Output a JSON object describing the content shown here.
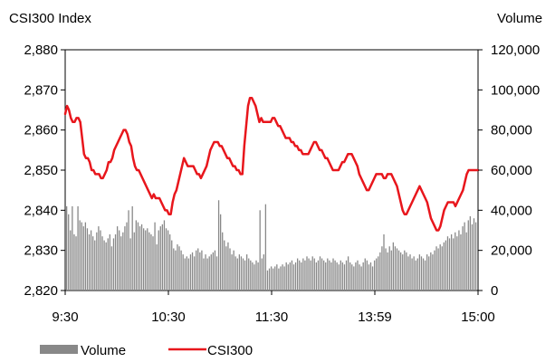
{
  "chart_data": {
    "type": "bar+line",
    "left_axis_label": "CSI300 Index",
    "right_axis_label": "Volume",
    "left_axis": {
      "ylim": [
        2820,
        2880
      ],
      "ticks": [
        2820,
        2830,
        2840,
        2850,
        2860,
        2870,
        2880
      ],
      "tick_labels": [
        "2,820",
        "2,830",
        "2,840",
        "2,850",
        "2,860",
        "2,870",
        "2,880"
      ]
    },
    "right_axis": {
      "ylim": [
        0,
        120000
      ],
      "ticks": [
        0,
        20000,
        40000,
        60000,
        80000,
        100000,
        120000
      ],
      "tick_labels": [
        "0",
        "20,000",
        "40,000",
        "60,000",
        "80,000",
        "100,000",
        "120,000"
      ]
    },
    "x_tick_labels": [
      "9:30",
      "10:30",
      "11:30",
      "13:59",
      "15:00"
    ],
    "grid": false,
    "legend_position": "bottom",
    "series": [
      {
        "name": "Volume",
        "type": "bar",
        "color": "#888888",
        "axis": "right",
        "values": [
          42000,
          38000,
          30000,
          42000,
          28000,
          27000,
          42000,
          35000,
          34000,
          32000,
          34000,
          31000,
          28000,
          30000,
          27000,
          25000,
          29000,
          32000,
          30000,
          27000,
          25000,
          24000,
          26000,
          28000,
          22000,
          26000,
          28000,
          32000,
          30000,
          27000,
          29000,
          32000,
          34000,
          40000,
          26000,
          42000,
          29000,
          35000,
          34000,
          32000,
          33000,
          31000,
          30000,
          31000,
          29000,
          28000,
          27000,
          34000,
          23000,
          30000,
          32000,
          33000,
          35000,
          31000,
          30000,
          28000,
          25000,
          21000,
          20000,
          23000,
          22000,
          20000,
          18000,
          16000,
          17000,
          16000,
          18000,
          19000,
          17000,
          20000,
          21000,
          19000,
          20000,
          16000,
          18000,
          16000,
          17000,
          18000,
          19000,
          20000,
          17000,
          45000,
          38000,
          29000,
          25000,
          22000,
          24000,
          21000,
          18000,
          20000,
          17000,
          16000,
          18000,
          17000,
          16000,
          15000,
          18000,
          16000,
          15000,
          14000,
          13000,
          15000,
          14000,
          40000,
          16000,
          18000,
          43000,
          10000,
          11000,
          12000,
          11000,
          12000,
          13000,
          11000,
          12000,
          13000,
          12000,
          14000,
          13000,
          14000,
          15000,
          13000,
          14000,
          16000,
          15000,
          14000,
          16000,
          15000,
          17000,
          16000,
          15000,
          17000,
          16000,
          14000,
          15000,
          17000,
          16000,
          15000,
          14000,
          16000,
          15000,
          14000,
          16000,
          15000,
          14000,
          13000,
          15000,
          14000,
          13000,
          15000,
          17000,
          14000,
          13000,
          12000,
          14000,
          15000,
          13000,
          12000,
          14000,
          16000,
          15000,
          13000,
          14000,
          12000,
          15000,
          16000,
          17000,
          19000,
          22000,
          28000,
          21000,
          19000,
          22000,
          20000,
          24000,
          22000,
          21000,
          20000,
          19000,
          18000,
          20000,
          19000,
          17000,
          18000,
          16000,
          17000,
          15000,
          16000,
          18000,
          17000,
          16000,
          15000,
          18000,
          17000,
          19000,
          18000,
          20000,
          22000,
          21000,
          23000,
          22000,
          24000,
          25000,
          27000,
          26000,
          28000,
          26000,
          29000,
          27000,
          30000,
          28000,
          32000,
          34000,
          29000,
          35000,
          37000,
          33000,
          36000,
          34000
        ]
      },
      {
        "name": "CSI300",
        "type": "line",
        "color": "#e8161c",
        "axis": "left",
        "values": [
          2864,
          2866,
          2865,
          2863,
          2862,
          2862,
          2863,
          2863,
          2862,
          2858,
          2854,
          2853,
          2853,
          2852,
          2850,
          2850,
          2849,
          2849,
          2849,
          2848,
          2848,
          2849,
          2850,
          2852,
          2852,
          2853,
          2855,
          2856,
          2857,
          2858,
          2859,
          2860,
          2860,
          2859,
          2857,
          2856,
          2853,
          2851,
          2850,
          2850,
          2849,
          2848,
          2847,
          2846,
          2845,
          2844,
          2843,
          2844,
          2843,
          2843,
          2843,
          2842,
          2841,
          2840,
          2840,
          2839,
          2839,
          2842,
          2844,
          2845,
          2847,
          2849,
          2851,
          2853,
          2852,
          2851,
          2851,
          2851,
          2851,
          2850,
          2849,
          2849,
          2848,
          2849,
          2850,
          2851,
          2853,
          2855,
          2856,
          2857,
          2857,
          2857,
          2856,
          2856,
          2855,
          2854,
          2853,
          2853,
          2852,
          2851,
          2851,
          2850,
          2850,
          2849,
          2849,
          2856,
          2861,
          2866,
          2868,
          2868,
          2867,
          2866,
          2864,
          2862,
          2863,
          2862,
          2862,
          2862,
          2862,
          2862,
          2863,
          2863,
          2862,
          2861,
          2861,
          2860,
          2859,
          2858,
          2858,
          2858,
          2857,
          2857,
          2856,
          2856,
          2855,
          2855,
          2854,
          2854,
          2854,
          2854,
          2855,
          2856,
          2857,
          2857,
          2856,
          2855,
          2855,
          2854,
          2853,
          2853,
          2852,
          2851,
          2850,
          2850,
          2850,
          2850,
          2851,
          2852,
          2852,
          2853,
          2854,
          2854,
          2854,
          2853,
          2852,
          2851,
          2849,
          2848,
          2847,
          2846,
          2845,
          2845,
          2846,
          2847,
          2848,
          2849,
          2849,
          2849,
          2849,
          2848,
          2848,
          2849,
          2849,
          2849,
          2848,
          2847,
          2846,
          2844,
          2842,
          2840,
          2839,
          2839,
          2840,
          2841,
          2842,
          2843,
          2844,
          2845,
          2846,
          2845,
          2844,
          2843,
          2842,
          2840,
          2838,
          2837,
          2836,
          2835,
          2835,
          2836,
          2838,
          2840,
          2841,
          2842,
          2842,
          2842,
          2842,
          2841,
          2842,
          2843,
          2844,
          2845,
          2847,
          2849,
          2850,
          2850,
          2850,
          2850,
          2850,
          2850
        ]
      }
    ]
  },
  "legend": [
    {
      "label": "Volume",
      "color": "#888888"
    },
    {
      "label": "CSI300",
      "color": "#e8161c"
    }
  ]
}
